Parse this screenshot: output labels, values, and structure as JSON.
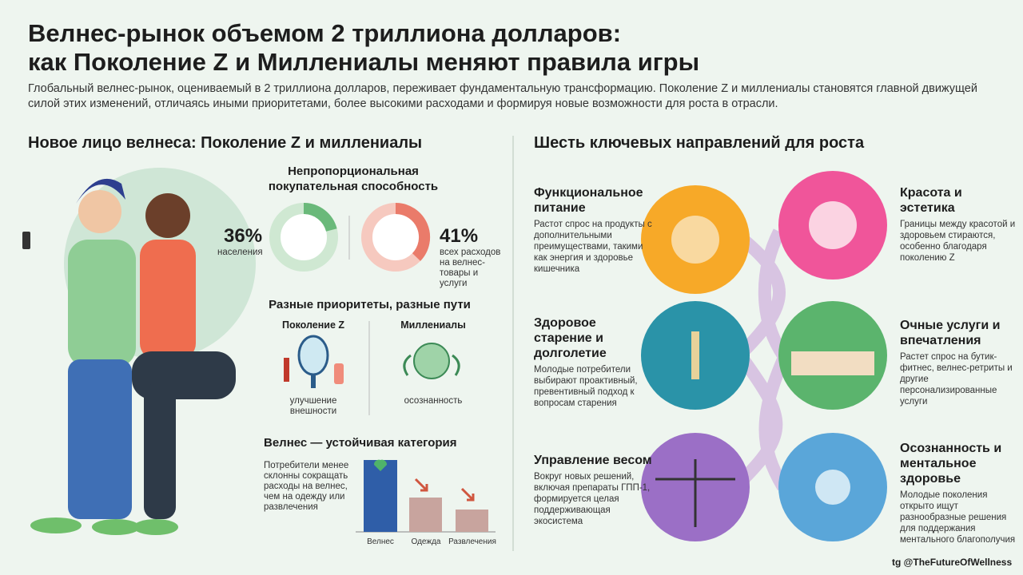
{
  "header": {
    "title_line1": "Велнес-рынок объемом 2 триллиона долларов:",
    "title_line2": "как Поколение Z и Миллениалы меняют правила игры",
    "intro": "Глобальный велнес-рынок, оцениваемый в 2 триллиона долларов, переживает фундаментальную трансформацию. Поколение Z и миллениалы становятся главной движущей силой этих изменений, отличаясь иными приоритетами, более высокими расходами и формируя новые возможности для роста в отрасли."
  },
  "left": {
    "heading": "Новое лицо велнеса: Поколение Z и миллениалы",
    "power": {
      "title": "Непропорциональная покупательная способность",
      "stat1": {
        "value": "36%",
        "label": "населения"
      },
      "stat2": {
        "value": "41%",
        "label": "всех расходов на велнес-товары и услуги"
      }
    },
    "priorities": {
      "title": "Разные приоритеты, разные пути",
      "genz": {
        "name": "Поколение Z",
        "caption": "улучшение внешности"
      },
      "millennials": {
        "name": "Миллениалы",
        "caption": "осознанность"
      }
    },
    "resilience": {
      "title": "Велнес — устойчивая категория",
      "text": "Потребители менее склонны сокращать расходы на велнес, чем на одежду или развлечения",
      "bars": [
        "Велнес",
        "Одежда",
        "Развлечения"
      ]
    }
  },
  "right": {
    "heading": "Шесть ключевых направлений для роста",
    "items": [
      {
        "title": "Функциональное питание",
        "text": "Растот спрос на продукты с дополнительными преимуществами, такими как энергия и здоровье кишечника"
      },
      {
        "title": "Красота и эстетика",
        "text": "Границы между красотой и здоровьем стираются, особенно благодаря поколению Z"
      },
      {
        "title": "Здоровое старение и долголетие",
        "text": "Молодые потребители выбирают проактивный, превентивный подход к вопросам старения"
      },
      {
        "title": "Очные услуги и впечатления",
        "text": "Растет спрос на бутик-фитнес, велнес-ретриты и другие персонализированные услуги"
      },
      {
        "title": "Управление весом",
        "text": "Вокруг новых решений, включая препараты ГПП-1, формируется целая поддерживающая экосистема"
      },
      {
        "title": "Осознанность и ментальное здоровье",
        "text": "Молодые поколения открыто ищут разнообразные решения для поддержания ментального благополучия"
      }
    ]
  },
  "footer": "tg @TheFutureOfWellness"
}
